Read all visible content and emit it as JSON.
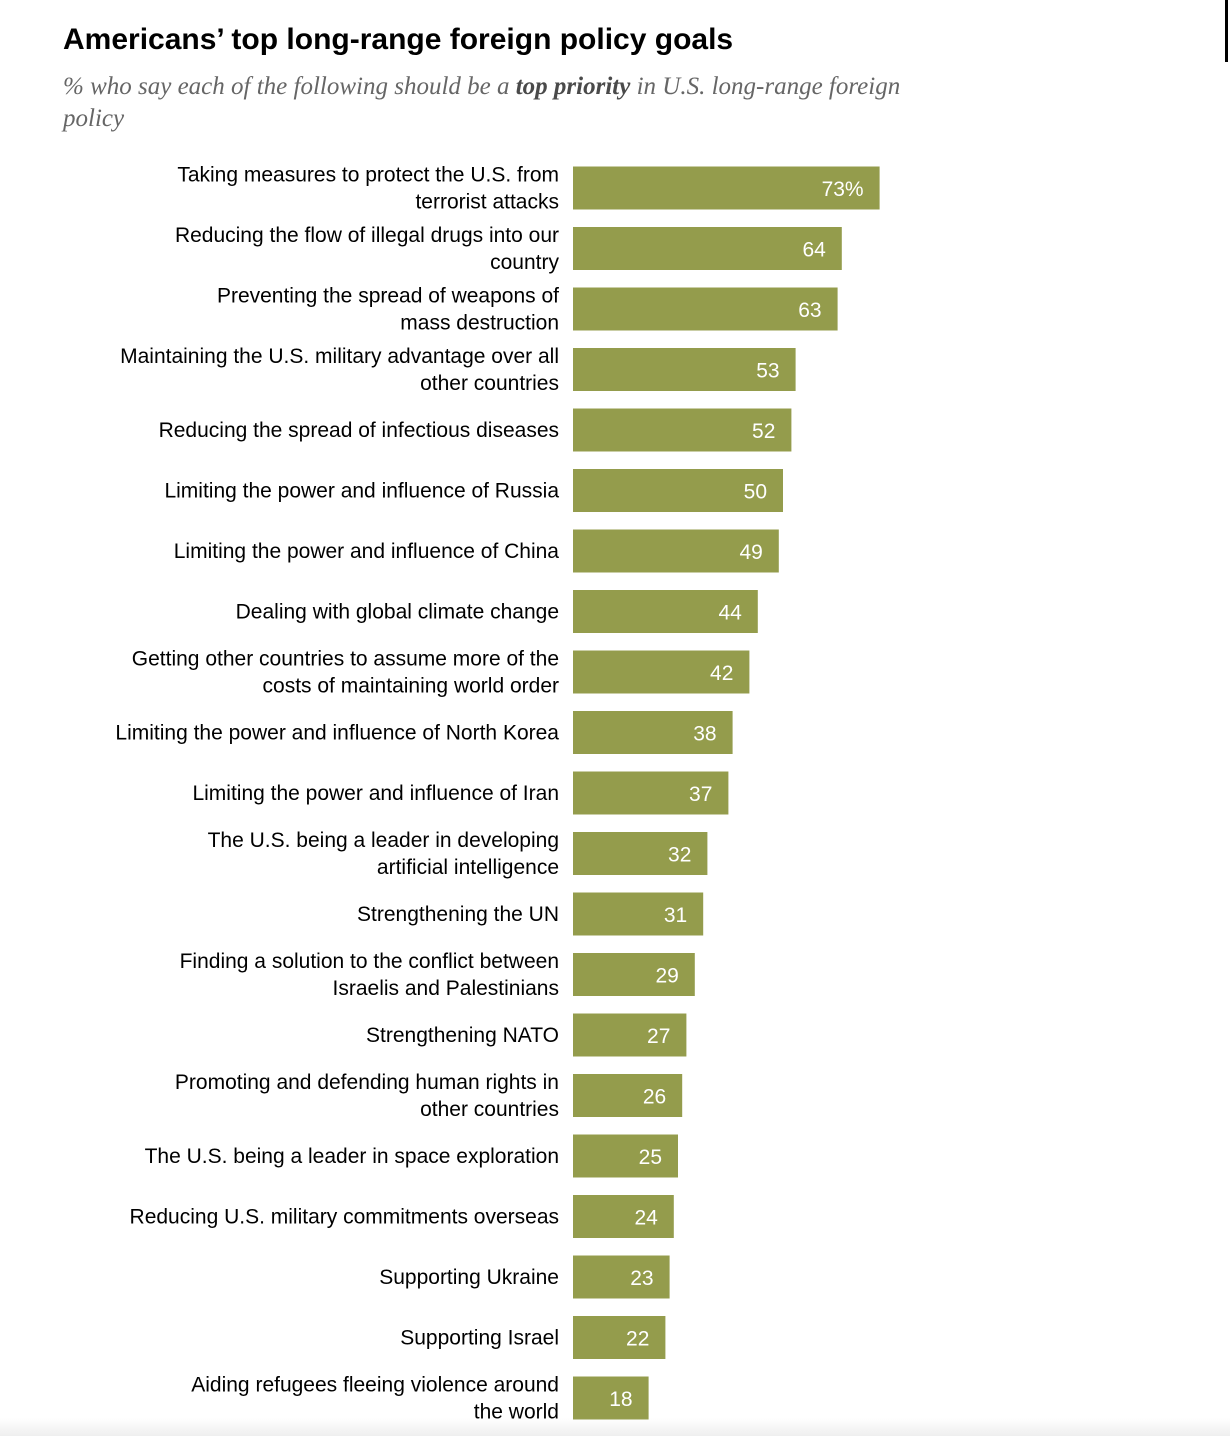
{
  "chart_data": {
    "type": "bar",
    "orientation": "horizontal",
    "title": "Americans’ top long-range foreign policy goals",
    "subtitle": {
      "before": "% who say each of the following should be a ",
      "emphasis": "top priority",
      "after": " in U.S. long-range foreign policy"
    },
    "unit_suffix": "%",
    "bar_color": "#949c4c",
    "label_color": "#ffffff",
    "xlim": [
      0,
      100
    ],
    "grid": false,
    "categories": [
      [
        "Taking measures to protect the U.S. from",
        "terrorist attacks"
      ],
      [
        "Reducing the flow of illegal drugs into our",
        "country"
      ],
      [
        "Preventing the spread of weapons of",
        "mass destruction"
      ],
      [
        "Maintaining the U.S. military advantage over all",
        "other countries"
      ],
      [
        "Reducing the spread of infectious diseases"
      ],
      [
        "Limiting the power and influence of Russia"
      ],
      [
        "Limiting the power and influence of China"
      ],
      [
        "Dealing with global climate change"
      ],
      [
        "Getting other countries to assume more of the",
        "costs of maintaining world order"
      ],
      [
        "Limiting the power and influence of North Korea"
      ],
      [
        "Limiting the power and influence of Iran"
      ],
      [
        "The U.S. being a leader in developing",
        "artificial intelligence"
      ],
      [
        "Strengthening the UN"
      ],
      [
        "Finding a solution to the conflict between",
        "Israelis and Palestinians"
      ],
      [
        "Strengthening NATO"
      ],
      [
        "Promoting and defending human rights in",
        "other countries"
      ],
      [
        "The U.S. being a leader in space exploration"
      ],
      [
        "Reducing U.S. military commitments overseas"
      ],
      [
        "Supporting Ukraine"
      ],
      [
        "Supporting Israel"
      ],
      [
        "Aiding refugees fleeing violence around",
        "the world"
      ]
    ],
    "values": [
      73,
      64,
      63,
      53,
      52,
      50,
      49,
      44,
      42,
      38,
      37,
      32,
      31,
      29,
      27,
      26,
      25,
      24,
      23,
      22,
      18
    ]
  }
}
